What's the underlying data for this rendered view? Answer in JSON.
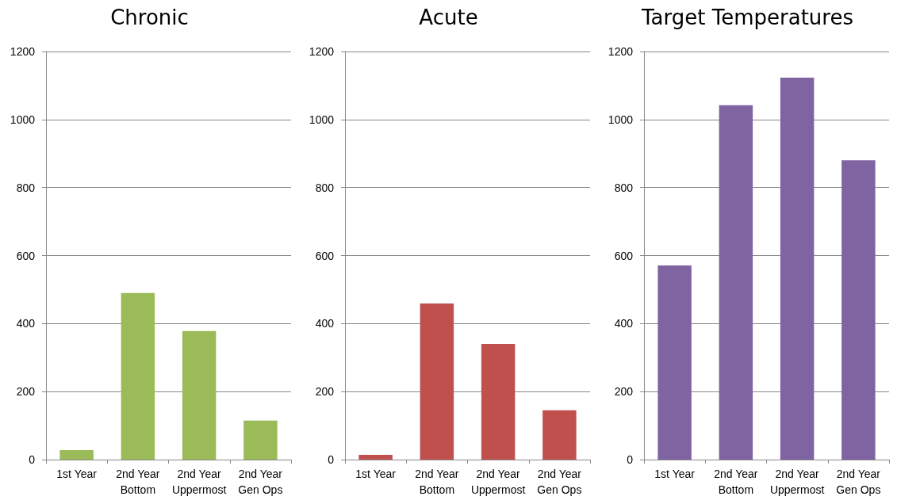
{
  "chart_data": [
    {
      "type": "bar",
      "title": "Chronic",
      "categories": [
        "1st Year",
        "2nd Year\nBottom",
        "2nd Year\nUppermost",
        "2nd Year\nGen Ops"
      ],
      "values": [
        28,
        490,
        378,
        115
      ],
      "color": "#9bbb59",
      "ylim": [
        0,
        1200
      ],
      "yticks": [
        0,
        200,
        400,
        600,
        800,
        1000,
        1200
      ],
      "grid": "y"
    },
    {
      "type": "bar",
      "title": "Acute",
      "categories": [
        "1st Year",
        "2nd Year\nBottom",
        "2nd Year\nUppermost",
        "2nd Year\nGen Ops"
      ],
      "values": [
        14,
        459,
        340,
        145
      ],
      "color": "#c0504d",
      "ylim": [
        0,
        1200
      ],
      "yticks": [
        0,
        200,
        400,
        600,
        800,
        1000,
        1200
      ],
      "grid": "y"
    },
    {
      "type": "bar",
      "title": "Target Temperatures",
      "categories": [
        "1st Year",
        "2nd Year\nBottom",
        "2nd Year\nUppermost",
        "2nd Year\nGen Ops"
      ],
      "values": [
        571,
        1042,
        1123,
        880
      ],
      "color": "#8064a2",
      "ylim": [
        0,
        1200
      ],
      "yticks": [
        0,
        200,
        400,
        600,
        800,
        1000,
        1200
      ],
      "grid": "y"
    }
  ]
}
